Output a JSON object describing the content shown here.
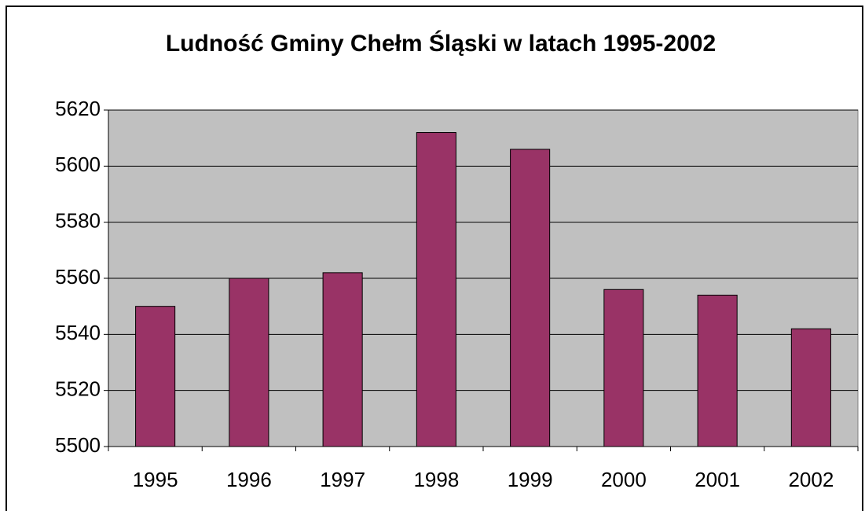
{
  "chart_data": {
    "type": "bar",
    "title": "Ludność Gminy Chełm Śląski w latach 1995-2002",
    "categories": [
      "1995",
      "1996",
      "1997",
      "1998",
      "1999",
      "2000",
      "2001",
      "2002"
    ],
    "values": [
      5550,
      5560,
      5562,
      5612,
      5606,
      5556,
      5554,
      5542
    ],
    "color": "#993366",
    "plot_background": "#c0c0c0",
    "ylim": [
      5500,
      5620
    ],
    "yticks": [
      5500,
      5520,
      5540,
      5560,
      5580,
      5600,
      5620
    ],
    "grid": true
  }
}
